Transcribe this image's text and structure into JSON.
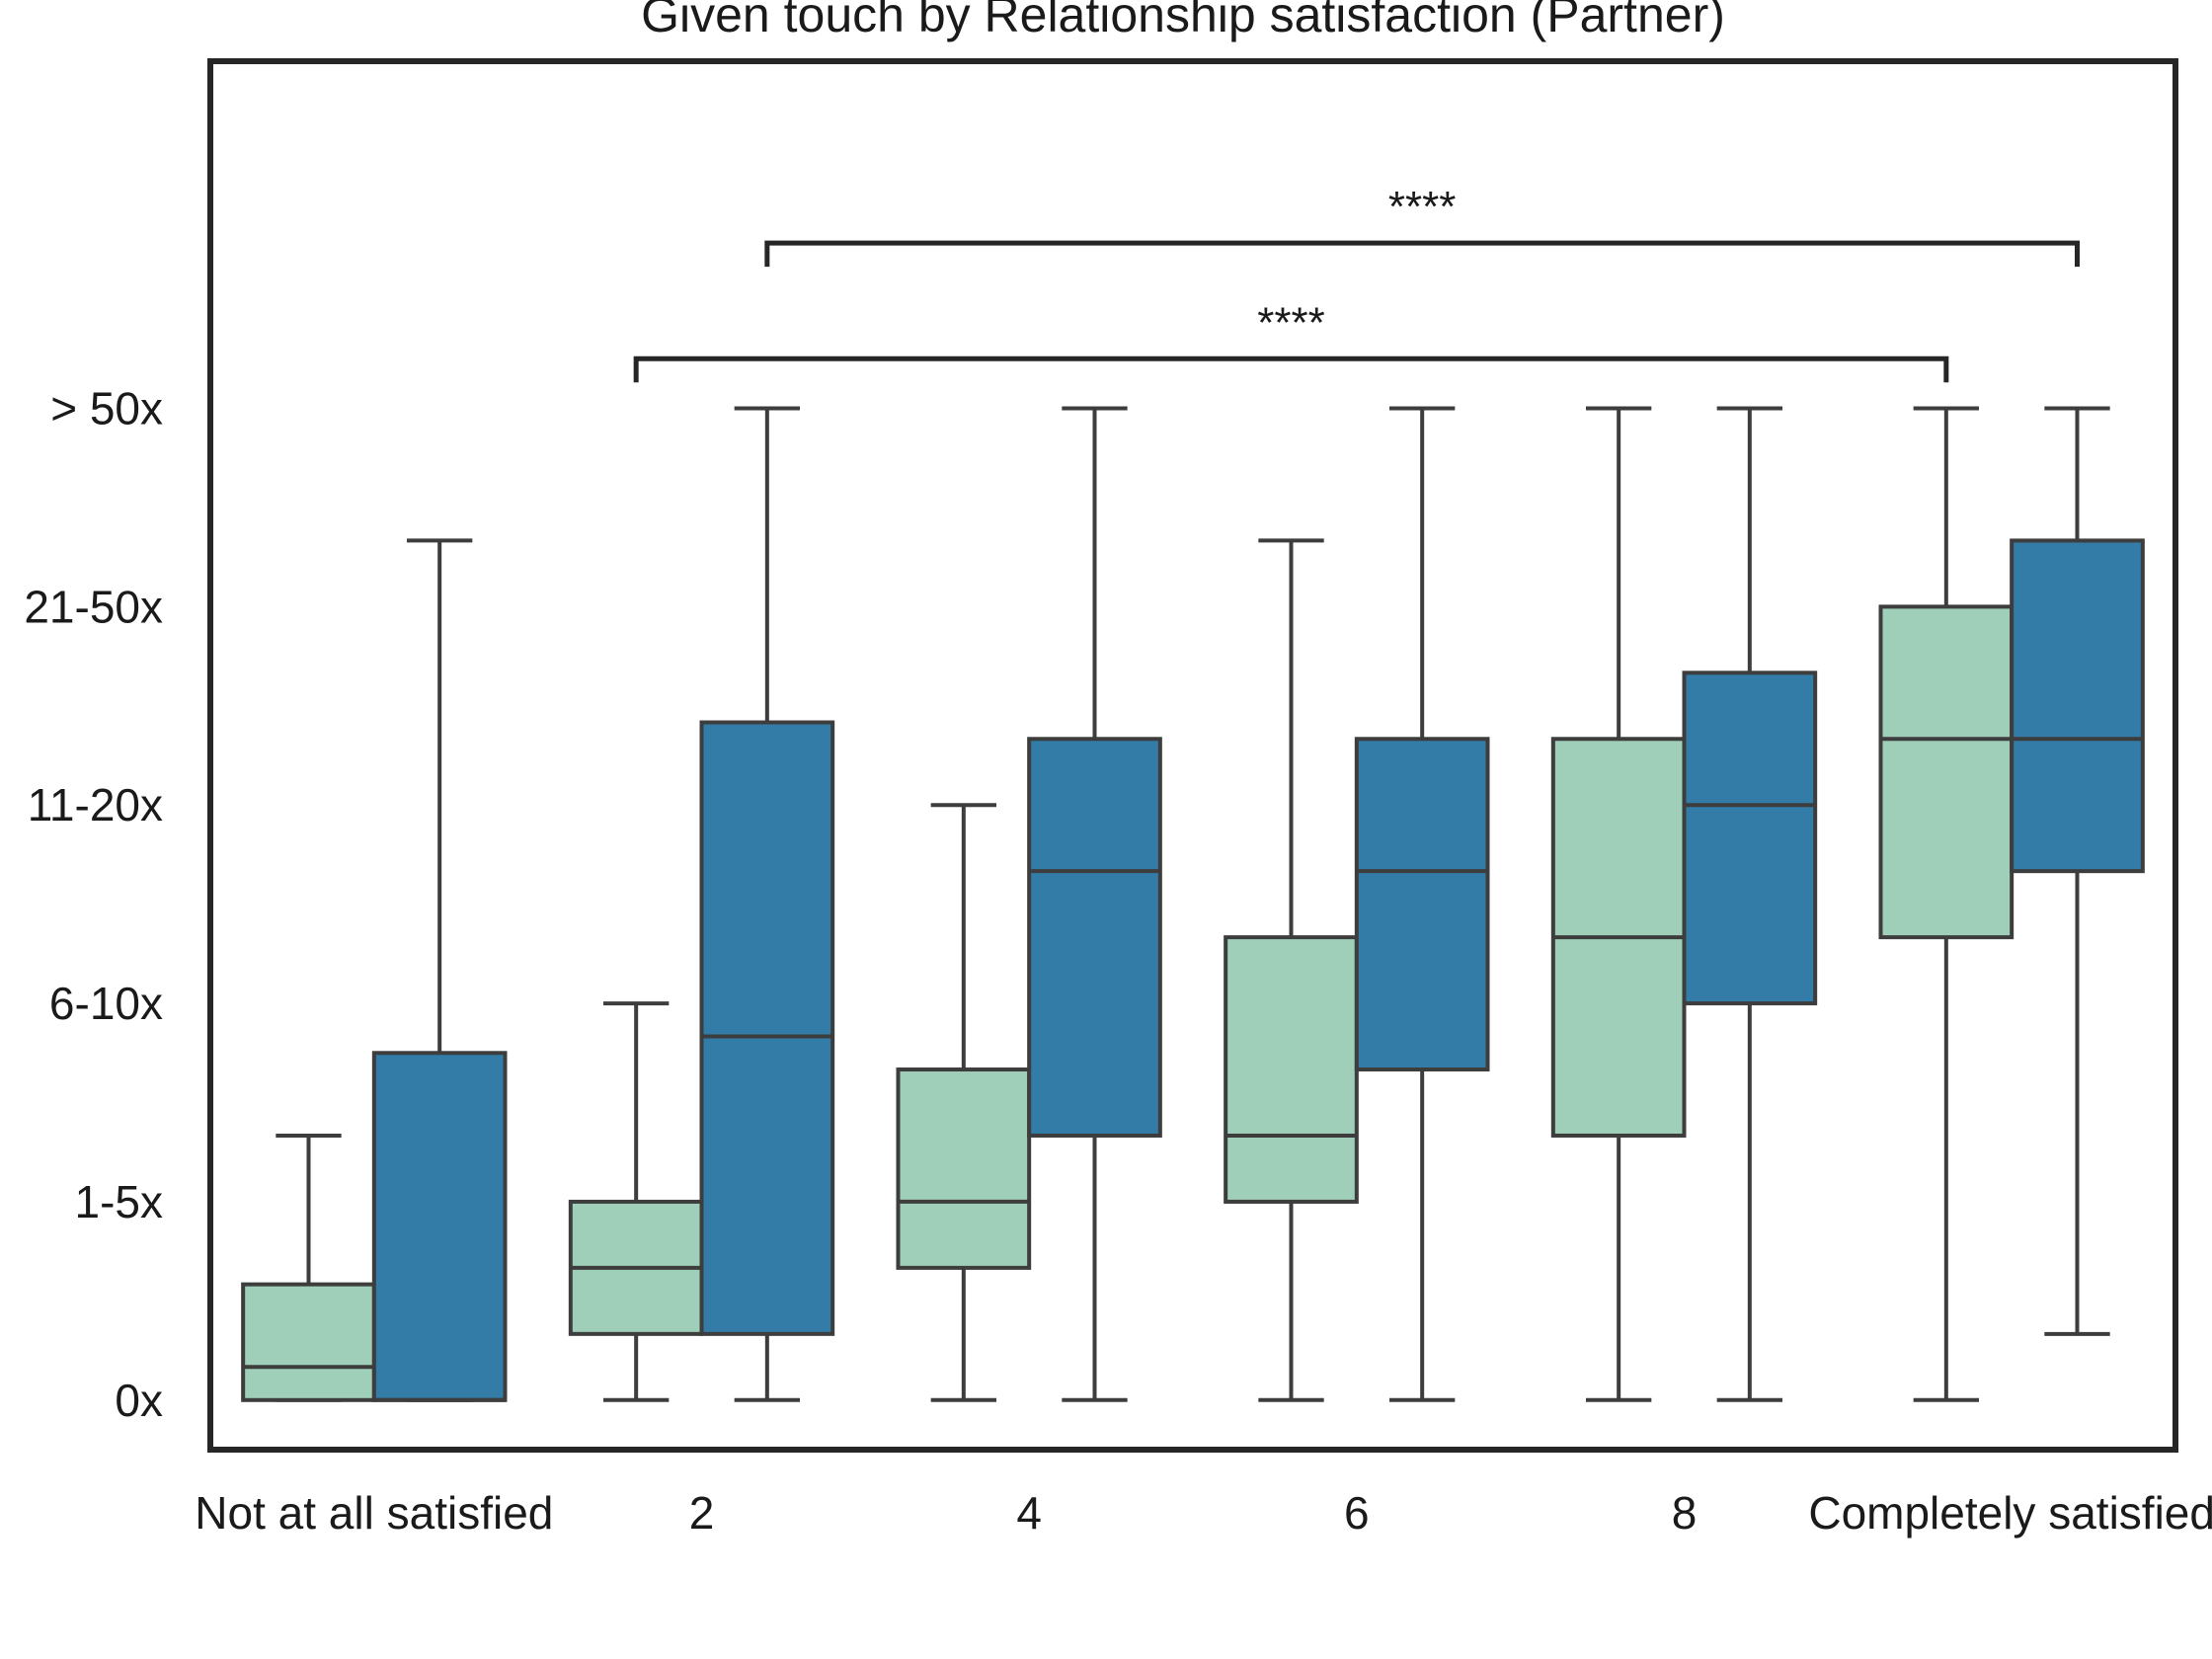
{
  "chart_data": {
    "type": "box",
    "title": "Given touch by Relationship satisfaction (Partner)",
    "xlabel": "",
    "ylabel": "",
    "categories": [
      "Not at all satisfied",
      "2",
      "4",
      "6",
      "8",
      "Completely satisfied"
    ],
    "y_tick_labels": [
      "0x",
      "1-5x",
      "6-10x",
      "11-20x",
      "21-50x",
      "> 50x"
    ],
    "y_tick_values": [
      0,
      3,
      6,
      9,
      12,
      15
    ],
    "ylim": [
      -0.75,
      20.25
    ],
    "grid": false,
    "legend": "none",
    "series": [
      {
        "color": "#9fcfb8",
        "boxes": [
          {
            "whislo": 0,
            "q1": 0,
            "med": 0.5,
            "q3": 1.75,
            "whishi": 4
          },
          {
            "whislo": 0,
            "q1": 1,
            "med": 2,
            "q3": 3,
            "whishi": 6
          },
          {
            "whislo": 0,
            "q1": 2,
            "med": 3,
            "q3": 5,
            "whishi": 9
          },
          {
            "whislo": 0,
            "q1": 3,
            "med": 4,
            "q3": 7,
            "whishi": 13
          },
          {
            "whislo": 0,
            "q1": 4,
            "med": 7,
            "q3": 10,
            "whishi": 15
          },
          {
            "whislo": 0,
            "q1": 7,
            "med": 10,
            "q3": 12,
            "whishi": 15
          }
        ]
      },
      {
        "color": "#327ca7",
        "boxes": [
          {
            "whislo": 0,
            "q1": 0,
            "med": 0,
            "q3": 5.25,
            "whishi": 13
          },
          {
            "whislo": 0,
            "q1": 1,
            "med": 5.5,
            "q3": 10.25,
            "whishi": 15
          },
          {
            "whislo": 0,
            "q1": 4,
            "med": 8,
            "q3": 10,
            "whishi": 15
          },
          {
            "whislo": 0,
            "q1": 5,
            "med": 8,
            "q3": 10,
            "whishi": 15
          },
          {
            "whislo": 0,
            "q1": 6,
            "med": 9,
            "q3": 11,
            "whishi": 15
          },
          {
            "whislo": 1,
            "q1": 8,
            "med": 10,
            "q3": 13,
            "whishi": 15
          }
        ]
      }
    ],
    "annotations": [
      {
        "text": "****",
        "from_category": 1,
        "from_series": 1,
        "to_category": 5,
        "to_series": 1,
        "level": 17.5
      },
      {
        "text": "****",
        "from_category": 1,
        "from_series": 0,
        "to_category": 5,
        "to_series": 0,
        "level": 15.75
      }
    ]
  }
}
